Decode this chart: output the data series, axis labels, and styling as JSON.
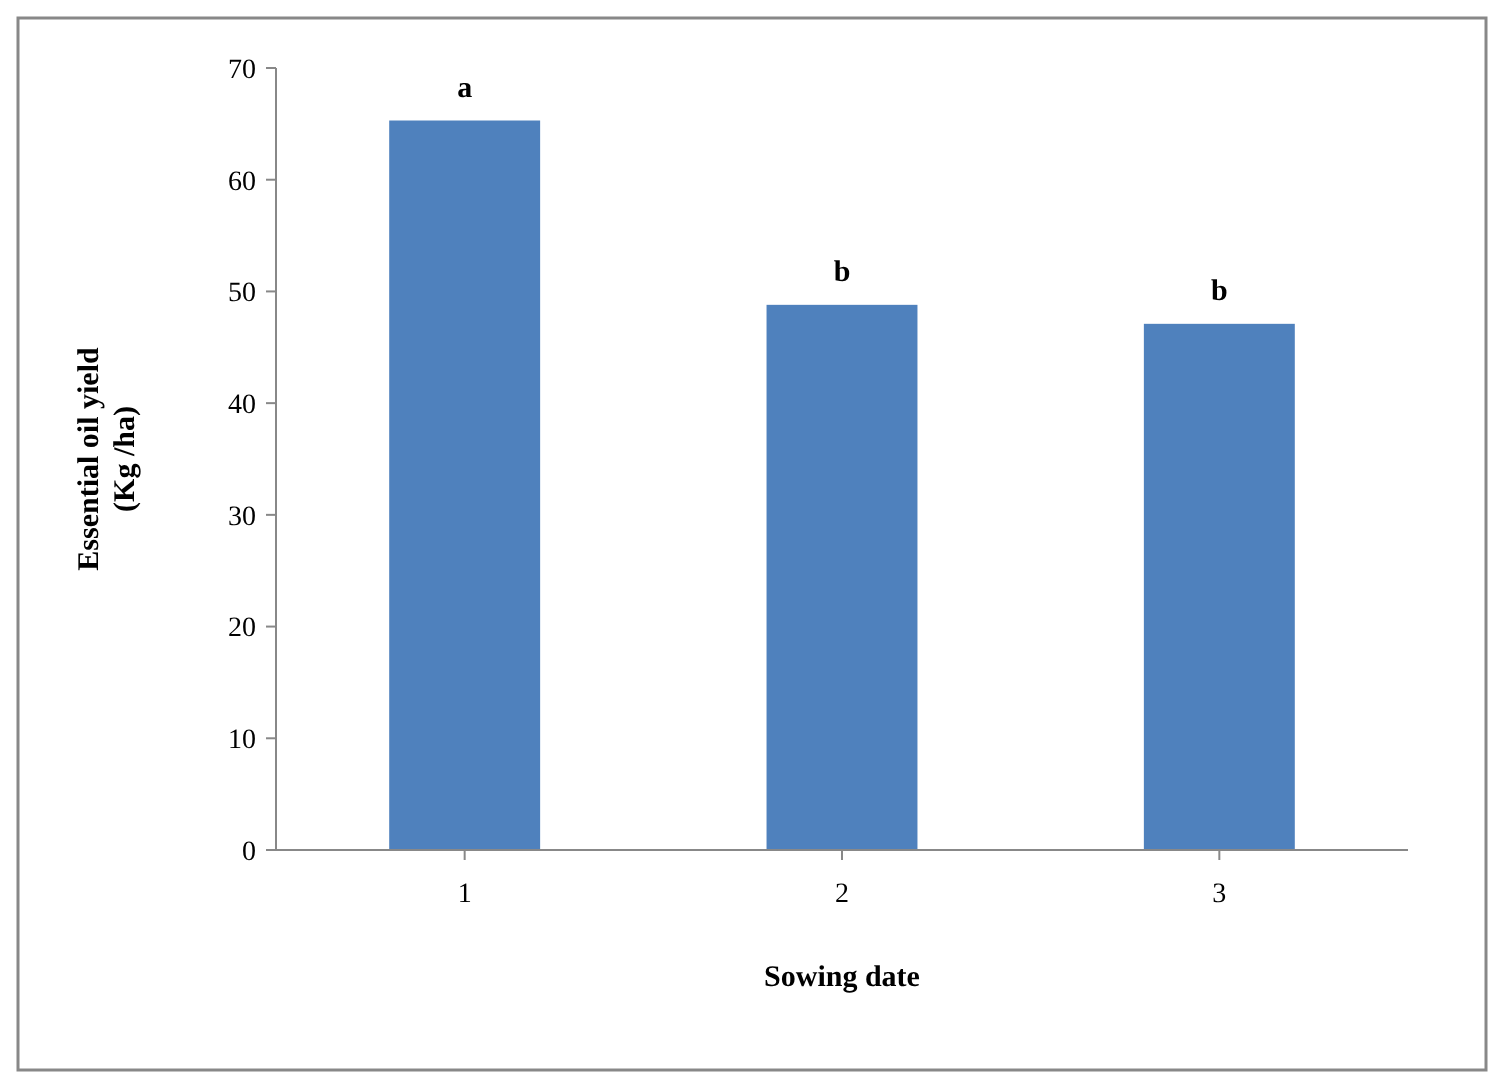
{
  "chart_data": {
    "type": "bar",
    "xlabel": "Sowing date",
    "ylabel": "Essential oil yield\n(Kg /ha)",
    "categories": [
      "1",
      "2",
      "3"
    ],
    "values": [
      65.3,
      48.8,
      47.1
    ],
    "color": "#4f81bd",
    "ylim": [
      0,
      70
    ],
    "yticks": [
      0,
      10,
      20,
      30,
      40,
      50,
      60,
      70
    ],
    "grid": false,
    "annotations": [
      {
        "text": "a",
        "x": "1",
        "y": 65.3
      },
      {
        "text": "b",
        "x": "2",
        "y": 48.8
      },
      {
        "text": "b",
        "x": "3",
        "y": 47.1
      }
    ]
  }
}
